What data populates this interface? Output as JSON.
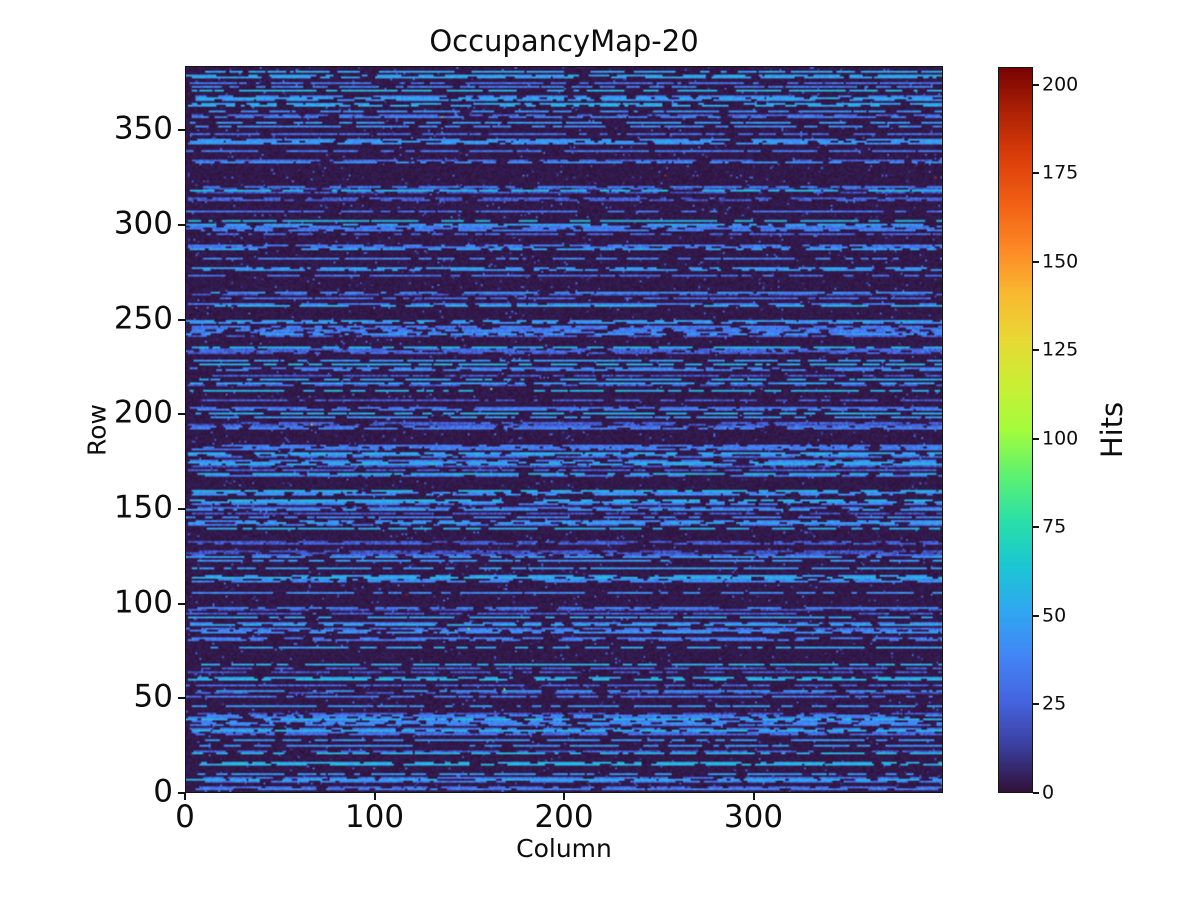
{
  "chart_data": {
    "type": "heatmap",
    "title": "OccupancyMap-20",
    "xlabel": "Column",
    "ylabel": "Row",
    "colorbar_label": "Hits",
    "colormap": "turbo",
    "n_cols": 400,
    "n_rows": 384,
    "x_range": [
      0,
      400
    ],
    "y_range": [
      0,
      384
    ],
    "vmin": 0,
    "vmax": 205,
    "x_ticks": [
      0,
      100,
      200,
      300
    ],
    "y_ticks": [
      0,
      50,
      100,
      150,
      200,
      250,
      300,
      350
    ],
    "colorbar_ticks": [
      0,
      25,
      50,
      75,
      100,
      125,
      150,
      175,
      200
    ],
    "grid": false,
    "legend": "none",
    "background_color": "#ffffff",
    "pattern": {
      "description": "Pixel-detector style occupancy map: near-zero dark-purple background with horizontal dashed streaks of roughly 20-65 hits on about 40% of rows, sparse isolated low-value pixels on quiet rows, and a few rare hot pixels reaching up to ~205 hits.",
      "seed": 20,
      "background_value_range": [
        0,
        4
      ],
      "active_row_probability": 0.42,
      "row_base_value_range": [
        20,
        58
      ],
      "dash_run_probability": 0.6,
      "dash_length_range": [
        2,
        10
      ],
      "gap_length_range": [
        1,
        6
      ],
      "dash_value_jitter": 18,
      "sparse_pixel_probability": 0.02,
      "sparse_value_range": [
        8,
        35
      ],
      "hot_pixel_count": 8,
      "hot_value_range": [
        75,
        205
      ]
    }
  }
}
